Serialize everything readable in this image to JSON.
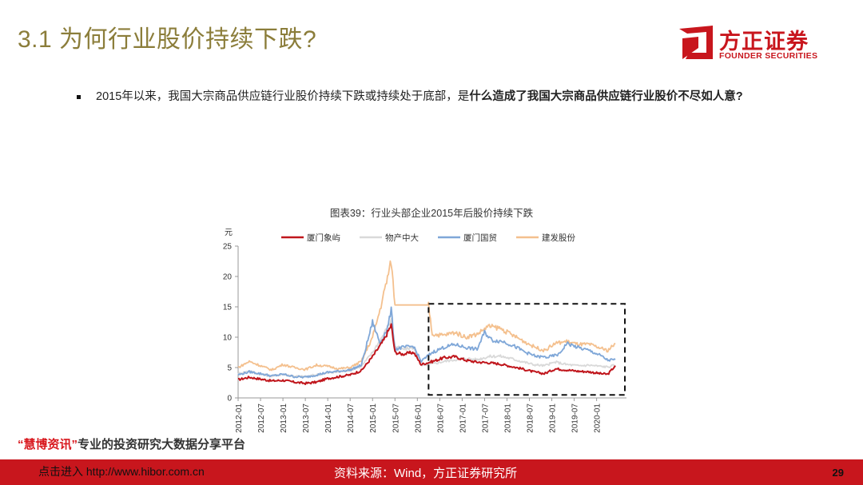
{
  "slide": {
    "title": "3.1 为何行业股价持续下跌?",
    "page_number": "29"
  },
  "logo": {
    "name_cn": "方正证券",
    "name_en": "FOUNDER SECURITIES",
    "color": "#c8161d"
  },
  "bullet": {
    "text_normal": "2015年以来，我国大宗商品供应链行业股价持续下跌或持续处于底部，是",
    "text_bold": "什么造成了我国大宗商品供应链行业股价不尽如人意?"
  },
  "chart_caption": "图表39：行业头部企业2015年后股价持续下跌",
  "chart_data": {
    "type": "line",
    "y_unit": "元",
    "ylim": [
      0,
      25
    ],
    "y_ticks": [
      0,
      5,
      10,
      15,
      20,
      25
    ],
    "x_ticks": [
      "2012-01",
      "2012-07",
      "2013-01",
      "2013-07",
      "2014-01",
      "2014-07",
      "2015-01",
      "2015-07",
      "2016-01",
      "2016-07",
      "2017-01",
      "2017-07",
      "2018-01",
      "2018-07",
      "2019-01",
      "2019-07",
      "2020-01"
    ],
    "x_range": [
      "2012-01",
      "2020-06"
    ],
    "legend_position": "top",
    "highlight_box": {
      "from": "2016-04",
      "to": "2020-06",
      "y_from": 0.5,
      "y_to": 15.5,
      "style": "dashed"
    },
    "series": [
      {
        "name": "厦门象屿",
        "color": "#c0161c",
        "points": [
          [
            "2012-01",
            3.0
          ],
          [
            "2012-04",
            3.4
          ],
          [
            "2012-07",
            3.1
          ],
          [
            "2012-10",
            2.8
          ],
          [
            "2013-01",
            2.9
          ],
          [
            "2013-04",
            2.6
          ],
          [
            "2013-07",
            2.4
          ],
          [
            "2013-10",
            2.6
          ],
          [
            "2014-01",
            3.2
          ],
          [
            "2014-04",
            3.5
          ],
          [
            "2014-07",
            3.8
          ],
          [
            "2014-10",
            4.5
          ],
          [
            "2015-01",
            6.8
          ],
          [
            "2015-04",
            9.5
          ],
          [
            "2015-06",
            12.0
          ],
          [
            "2015-07",
            7.5
          ],
          [
            "2015-09",
            7.2
          ],
          [
            "2015-12",
            7.5
          ],
          [
            "2016-02",
            5.5
          ],
          [
            "2016-05",
            6.0
          ],
          [
            "2016-08",
            6.6
          ],
          [
            "2016-11",
            6.8
          ],
          [
            "2017-02",
            6.2
          ],
          [
            "2017-05",
            5.9
          ],
          [
            "2017-08",
            5.8
          ],
          [
            "2017-11",
            5.6
          ],
          [
            "2018-02",
            5.2
          ],
          [
            "2018-05",
            4.8
          ],
          [
            "2018-08",
            4.3
          ],
          [
            "2018-11",
            4.0
          ],
          [
            "2019-02",
            4.8
          ],
          [
            "2019-05",
            4.6
          ],
          [
            "2019-08",
            4.4
          ],
          [
            "2019-11",
            4.3
          ],
          [
            "2020-02",
            4.0
          ],
          [
            "2020-04",
            3.9
          ],
          [
            "2020-06",
            5.3
          ]
        ]
      },
      {
        "name": "物产中大",
        "color": "#d9d9d9",
        "points": [
          [
            "2012-01",
            4.0
          ],
          [
            "2012-04",
            4.4
          ],
          [
            "2012-07",
            3.9
          ],
          [
            "2012-10",
            3.6
          ],
          [
            "2013-01",
            3.9
          ],
          [
            "2013-04",
            3.6
          ],
          [
            "2013-07",
            3.5
          ],
          [
            "2013-10",
            3.8
          ],
          [
            "2014-01",
            4.1
          ],
          [
            "2014-04",
            4.3
          ],
          [
            "2014-07",
            4.6
          ],
          [
            "2014-10",
            5.2
          ],
          [
            "2015-01",
            7.5
          ],
          [
            "2015-04",
            10.5
          ],
          [
            "2015-06",
            12.8
          ],
          [
            "2015-07",
            8.5
          ],
          [
            "2015-09",
            8.0
          ],
          [
            "2015-12",
            8.3
          ],
          [
            "2016-02",
            5.3
          ],
          [
            "2016-05",
            5.6
          ],
          [
            "2016-08",
            6.0
          ],
          [
            "2016-11",
            6.3
          ],
          [
            "2017-02",
            6.5
          ],
          [
            "2017-05",
            6.3
          ],
          [
            "2017-08",
            6.8
          ],
          [
            "2017-11",
            6.9
          ],
          [
            "2018-02",
            6.5
          ],
          [
            "2018-05",
            6.0
          ],
          [
            "2018-08",
            5.5
          ],
          [
            "2018-11",
            5.3
          ],
          [
            "2019-02",
            5.9
          ],
          [
            "2019-05",
            5.5
          ],
          [
            "2019-08",
            5.3
          ],
          [
            "2019-11",
            5.4
          ],
          [
            "2020-02",
            5.2
          ],
          [
            "2020-04",
            5.1
          ],
          [
            "2020-06",
            5.4
          ]
        ]
      },
      {
        "name": "厦门国贸",
        "color": "#7fa7d8",
        "points": [
          [
            "2012-01",
            3.8
          ],
          [
            "2012-04",
            4.3
          ],
          [
            "2012-07",
            4.0
          ],
          [
            "2012-10",
            3.6
          ],
          [
            "2013-01",
            3.9
          ],
          [
            "2013-04",
            3.5
          ],
          [
            "2013-07",
            3.4
          ],
          [
            "2013-10",
            3.8
          ],
          [
            "2014-01",
            4.2
          ],
          [
            "2014-04",
            4.4
          ],
          [
            "2014-07",
            4.6
          ],
          [
            "2014-10",
            5.4
          ],
          [
            "2015-01",
            12.5
          ],
          [
            "2015-03",
            9.0
          ],
          [
            "2015-05",
            11.5
          ],
          [
            "2015-06",
            14.5
          ],
          [
            "2015-07",
            8.0
          ],
          [
            "2015-09",
            8.3
          ],
          [
            "2015-12",
            8.5
          ],
          [
            "2016-02",
            6.0
          ],
          [
            "2016-05",
            7.5
          ],
          [
            "2016-08",
            8.3
          ],
          [
            "2016-11",
            8.8
          ],
          [
            "2017-02",
            8.3
          ],
          [
            "2017-05",
            8.0
          ],
          [
            "2017-07",
            10.8
          ],
          [
            "2017-09",
            9.5
          ],
          [
            "2017-12",
            9.3
          ],
          [
            "2018-03",
            8.5
          ],
          [
            "2018-06",
            7.5
          ],
          [
            "2018-09",
            6.8
          ],
          [
            "2018-12",
            6.7
          ],
          [
            "2019-03",
            7.2
          ],
          [
            "2019-05",
            9.0
          ],
          [
            "2019-08",
            8.3
          ],
          [
            "2019-11",
            7.8
          ],
          [
            "2020-02",
            7.0
          ],
          [
            "2020-04",
            6.2
          ],
          [
            "2020-06",
            6.3
          ]
        ]
      },
      {
        "name": "建发股份",
        "color": "#f4c08e",
        "points": [
          [
            "2012-01",
            5.0
          ],
          [
            "2012-04",
            6.0
          ],
          [
            "2012-07",
            5.3
          ],
          [
            "2012-10",
            4.6
          ],
          [
            "2013-01",
            5.5
          ],
          [
            "2013-04",
            5.0
          ],
          [
            "2013-07",
            4.7
          ],
          [
            "2013-10",
            5.4
          ],
          [
            "2014-01",
            5.2
          ],
          [
            "2014-04",
            4.8
          ],
          [
            "2014-07",
            5.0
          ],
          [
            "2014-10",
            6.0
          ],
          [
            "2015-01",
            10.0
          ],
          [
            "2015-03",
            14.5
          ],
          [
            "2015-06",
            22.5
          ],
          [
            "2015-07",
            15.3
          ],
          [
            "2015-10",
            15.3
          ],
          [
            "2016-01",
            15.3
          ],
          [
            "2016-04",
            15.3
          ],
          [
            "2016-05",
            10.5
          ],
          [
            "2016-08",
            10.3
          ],
          [
            "2016-11",
            10.8
          ],
          [
            "2017-02",
            10.0
          ],
          [
            "2017-05",
            10.5
          ],
          [
            "2017-08",
            11.8
          ],
          [
            "2017-11",
            11.5
          ],
          [
            "2018-02",
            10.5
          ],
          [
            "2018-05",
            9.5
          ],
          [
            "2018-08",
            8.5
          ],
          [
            "2018-11",
            7.8
          ],
          [
            "2019-02",
            9.0
          ],
          [
            "2019-05",
            9.3
          ],
          [
            "2019-08",
            8.8
          ],
          [
            "2019-11",
            8.8
          ],
          [
            "2020-02",
            8.2
          ],
          [
            "2020-04",
            7.8
          ],
          [
            "2020-06",
            9.0
          ]
        ]
      }
    ]
  },
  "promo": {
    "open_quote": "“",
    "brand": "慧博资讯",
    "close_quote": "”",
    "tagline": "专业的投资研究大数据分享平台"
  },
  "footer": {
    "link_text": "点击进入 http://www.hibor.com.cn",
    "source_text": "资料来源：Wind，方正证券研究所"
  }
}
